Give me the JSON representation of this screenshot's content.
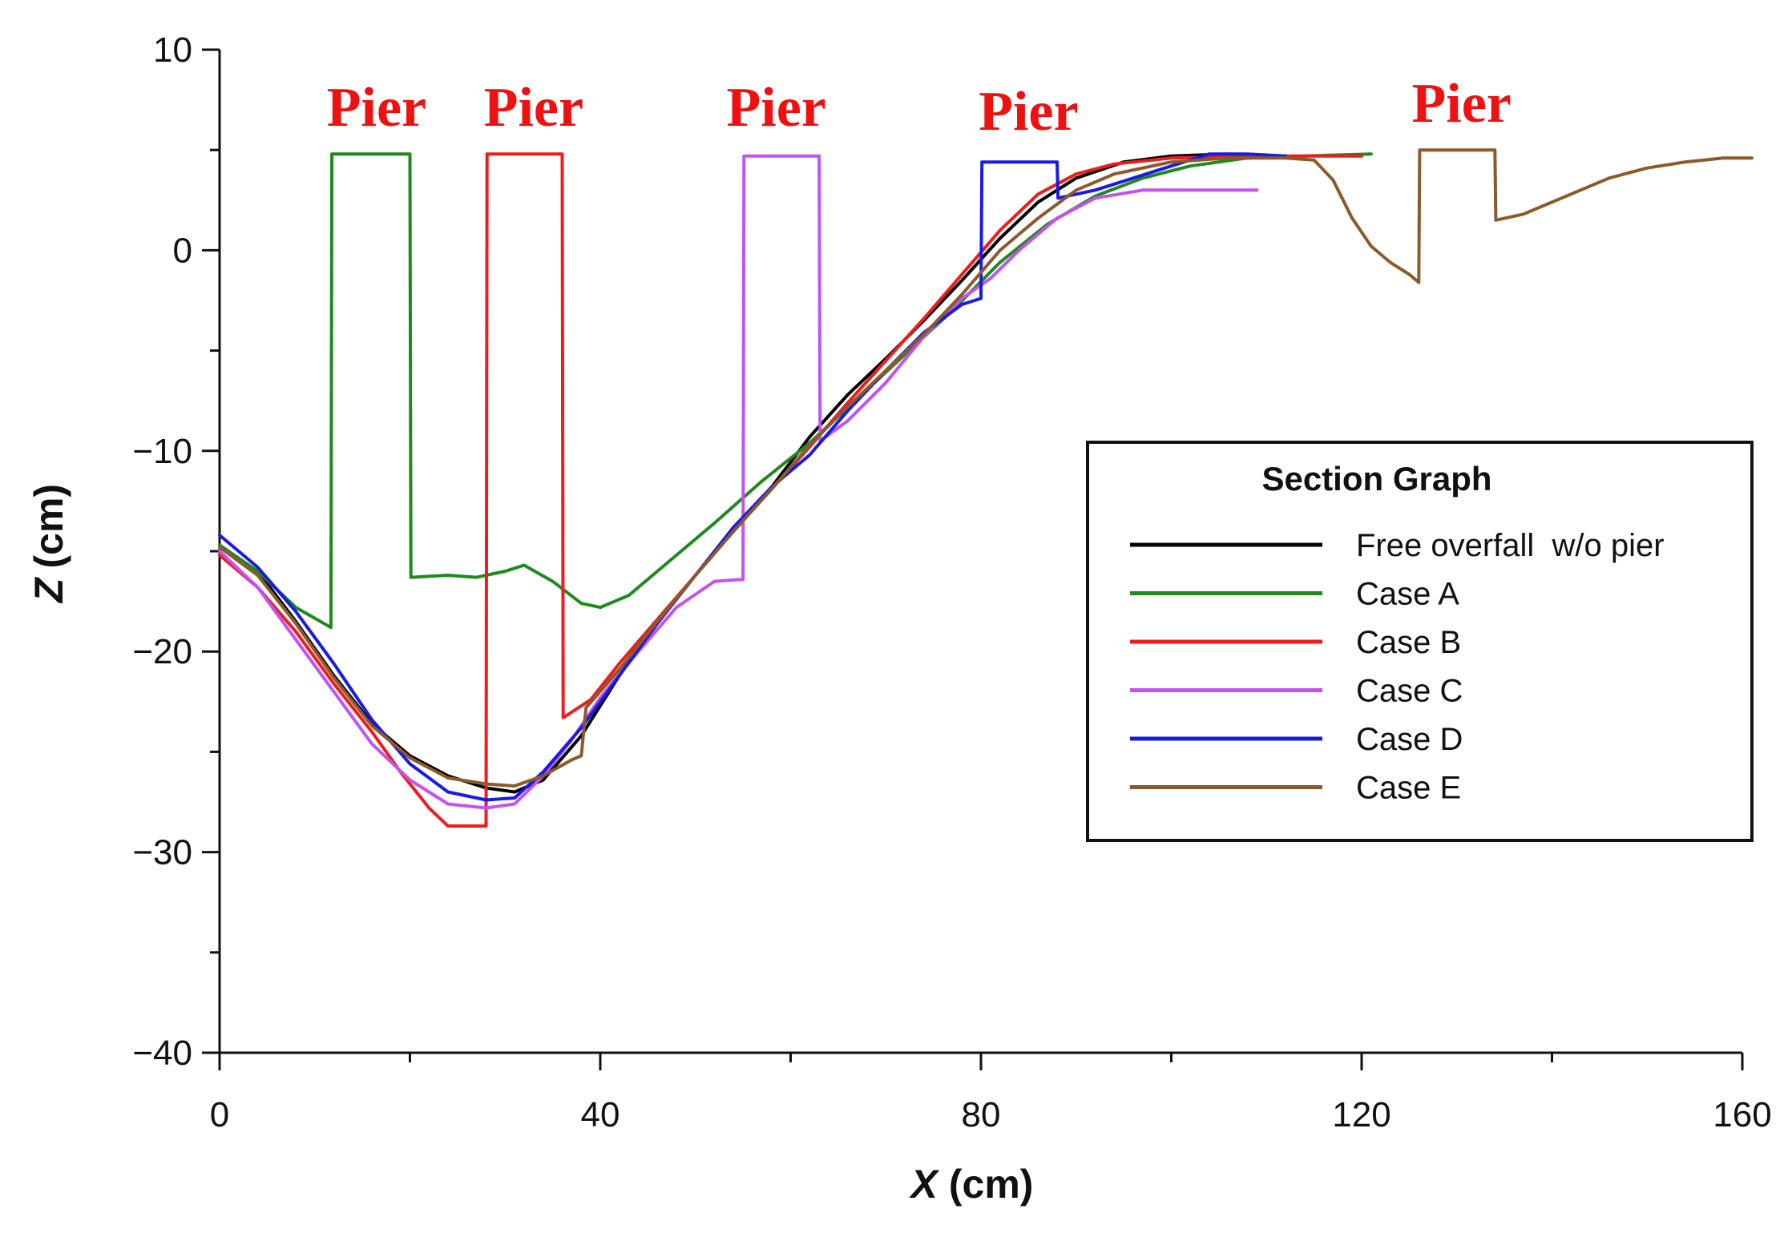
{
  "chart_data": {
    "type": "line",
    "title": "",
    "xlabel_symbol": "X",
    "xlabel_unit": "(cm)",
    "ylabel_symbol": "Z",
    "ylabel_unit": "(cm)",
    "xlim": [
      0,
      160
    ],
    "ylim": [
      -40,
      10
    ],
    "x_ticks": [
      0,
      40,
      80,
      120,
      160
    ],
    "x_tick_labels": [
      "0",
      "40",
      "80",
      "120",
      "160"
    ],
    "x_minor_ticks": [
      20,
      60,
      100,
      140
    ],
    "y_ticks": [
      -40,
      -30,
      -20,
      -10,
      0,
      10
    ],
    "y_tick_labels": [
      "−40",
      "−30",
      "−20",
      "−10",
      "0",
      "10"
    ],
    "y_minor_ticks": [
      -35,
      -25,
      -15,
      -5,
      5
    ],
    "grid": false,
    "legend": {
      "title": "Section Graph",
      "position": "right-middle"
    },
    "annotations": [
      {
        "text": "Pier",
        "x": 16.5,
        "y": 6.2
      },
      {
        "text": "Pier",
        "x": 33,
        "y": 6.2
      },
      {
        "text": "Pier",
        "x": 58.5,
        "y": 6.2
      },
      {
        "text": "Pier",
        "x": 85,
        "y": 6.0
      },
      {
        "text": "Pier",
        "x": 130.5,
        "y": 6.4
      }
    ],
    "series": [
      {
        "name": "Free overfall  w/o pier",
        "color": "#000000",
        "points": [
          [
            0,
            -14.7
          ],
          [
            4,
            -16
          ],
          [
            8,
            -18.5
          ],
          [
            12,
            -21.2
          ],
          [
            16,
            -23.6
          ],
          [
            20,
            -25.2
          ],
          [
            24,
            -26.2
          ],
          [
            28,
            -26.8
          ],
          [
            31,
            -27.0
          ],
          [
            34,
            -26.4
          ],
          [
            38,
            -24.2
          ],
          [
            42,
            -21.2
          ],
          [
            46,
            -18.5
          ],
          [
            50,
            -16.2
          ],
          [
            54,
            -14.0
          ],
          [
            58,
            -11.8
          ],
          [
            62,
            -9.3
          ],
          [
            66,
            -7.2
          ],
          [
            70,
            -5.4
          ],
          [
            74,
            -3.5
          ],
          [
            78,
            -1.5
          ],
          [
            82,
            0.6
          ],
          [
            86,
            2.4
          ],
          [
            90,
            3.6
          ],
          [
            95,
            4.4
          ],
          [
            100,
            4.7
          ],
          [
            106,
            4.8
          ],
          [
            110,
            4.7
          ]
        ]
      },
      {
        "name": "Case A",
        "color": "#1e8a1e",
        "points": [
          [
            0,
            -14.7
          ],
          [
            4,
            -16
          ],
          [
            8,
            -17.8
          ],
          [
            11.7,
            -18.8
          ],
          [
            11.8,
            4.8
          ],
          [
            20,
            4.8
          ],
          [
            20.1,
            -16.3
          ],
          [
            24,
            -16.2
          ],
          [
            27,
            -16.3
          ],
          [
            30,
            -16.0
          ],
          [
            32,
            -15.7
          ],
          [
            35,
            -16.5
          ],
          [
            38,
            -17.6
          ],
          [
            40,
            -17.8
          ],
          [
            43,
            -17.2
          ],
          [
            47,
            -15.6
          ],
          [
            52,
            -13.6
          ],
          [
            57,
            -11.5
          ],
          [
            62,
            -9.6
          ],
          [
            67,
            -7.4
          ],
          [
            72,
            -5.2
          ],
          [
            77,
            -3.0
          ],
          [
            82,
            -0.6
          ],
          [
            87,
            1.3
          ],
          [
            92,
            2.7
          ],
          [
            97,
            3.6
          ],
          [
            102,
            4.2
          ],
          [
            108,
            4.6
          ],
          [
            114,
            4.7
          ],
          [
            121,
            4.8
          ]
        ]
      },
      {
        "name": "Case B",
        "color": "#ee1c1c",
        "points": [
          [
            0,
            -15.2
          ],
          [
            4,
            -16.8
          ],
          [
            8,
            -19.0
          ],
          [
            12,
            -21.6
          ],
          [
            16,
            -24.0
          ],
          [
            19,
            -26.0
          ],
          [
            22,
            -27.8
          ],
          [
            24,
            -28.7
          ],
          [
            28,
            -28.7
          ],
          [
            28.1,
            4.8
          ],
          [
            36,
            4.8
          ],
          [
            36.1,
            -23.3
          ],
          [
            39,
            -22.4
          ],
          [
            42,
            -20.6
          ],
          [
            46,
            -18.4
          ],
          [
            50,
            -16.2
          ],
          [
            54,
            -14.0
          ],
          [
            58,
            -11.9
          ],
          [
            62,
            -9.8
          ],
          [
            66,
            -7.6
          ],
          [
            70,
            -5.5
          ],
          [
            74,
            -3.4
          ],
          [
            78,
            -1.2
          ],
          [
            82,
            1.0
          ],
          [
            86,
            2.8
          ],
          [
            90,
            3.8
          ],
          [
            94,
            4.3
          ],
          [
            100,
            4.6
          ],
          [
            108,
            4.7
          ],
          [
            114,
            4.7
          ],
          [
            120,
            4.7
          ]
        ]
      },
      {
        "name": "Case C",
        "color": "#c452f0",
        "points": [
          [
            0,
            -15.0
          ],
          [
            4,
            -16.8
          ],
          [
            8,
            -19.4
          ],
          [
            12,
            -22.0
          ],
          [
            16,
            -24.6
          ],
          [
            20,
            -26.4
          ],
          [
            24,
            -27.6
          ],
          [
            28,
            -27.8
          ],
          [
            31,
            -27.6
          ],
          [
            34,
            -26.2
          ],
          [
            37,
            -24.4
          ],
          [
            40,
            -22.3
          ],
          [
            44,
            -20.0
          ],
          [
            48,
            -17.8
          ],
          [
            52,
            -16.5
          ],
          [
            55,
            -16.4
          ],
          [
            55.1,
            4.7
          ],
          [
            63,
            4.7
          ],
          [
            63.1,
            -9.5
          ],
          [
            66,
            -8.5
          ],
          [
            70,
            -6.6
          ],
          [
            74,
            -4.3
          ],
          [
            78,
            -2.4
          ],
          [
            81,
            -1.4
          ],
          [
            84,
            0.0
          ],
          [
            88,
            1.6
          ],
          [
            92,
            2.6
          ],
          [
            97,
            3.0
          ],
          [
            103,
            3.0
          ],
          [
            109,
            3.0
          ]
        ]
      },
      {
        "name": "Case D",
        "color": "#1a1ae6",
        "points": [
          [
            0,
            -14.2
          ],
          [
            4,
            -15.8
          ],
          [
            8,
            -18.0
          ],
          [
            12,
            -20.6
          ],
          [
            16,
            -23.4
          ],
          [
            20,
            -25.6
          ],
          [
            24,
            -27.0
          ],
          [
            28,
            -27.4
          ],
          [
            31,
            -27.3
          ],
          [
            34,
            -26.0
          ],
          [
            38,
            -23.8
          ],
          [
            42,
            -21.2
          ],
          [
            46,
            -18.6
          ],
          [
            50,
            -16.2
          ],
          [
            54,
            -13.8
          ],
          [
            58,
            -11.8
          ],
          [
            62,
            -10.2
          ],
          [
            66,
            -8.0
          ],
          [
            70,
            -6.0
          ],
          [
            74,
            -4.1
          ],
          [
            78,
            -2.7
          ],
          [
            80,
            -2.4
          ],
          [
            80.1,
            4.4
          ],
          [
            88,
            4.4
          ],
          [
            88.1,
            2.6
          ],
          [
            92,
            3.0
          ],
          [
            96,
            3.6
          ],
          [
            100,
            4.2
          ],
          [
            104,
            4.8
          ],
          [
            108,
            4.8
          ],
          [
            112,
            4.7
          ]
        ]
      },
      {
        "name": "Case E",
        "color": "#8b5a2b",
        "points": [
          [
            0,
            -14.8
          ],
          [
            4,
            -16.2
          ],
          [
            8,
            -18.6
          ],
          [
            12,
            -21.3
          ],
          [
            16,
            -23.7
          ],
          [
            20,
            -25.3
          ],
          [
            24,
            -26.3
          ],
          [
            28,
            -26.6
          ],
          [
            31,
            -26.7
          ],
          [
            34,
            -26.2
          ],
          [
            37,
            -25.4
          ],
          [
            38,
            -25.2
          ],
          [
            38.5,
            -22.8
          ],
          [
            42,
            -20.9
          ],
          [
            46,
            -18.5
          ],
          [
            50,
            -16.2
          ],
          [
            54,
            -14.0
          ],
          [
            58,
            -11.9
          ],
          [
            62,
            -9.7
          ],
          [
            66,
            -7.8
          ],
          [
            70,
            -6.0
          ],
          [
            74,
            -4.2
          ],
          [
            78,
            -2.2
          ],
          [
            82,
            0.0
          ],
          [
            86,
            1.6
          ],
          [
            90,
            3.0
          ],
          [
            94,
            3.8
          ],
          [
            100,
            4.4
          ],
          [
            106,
            4.6
          ],
          [
            112,
            4.6
          ],
          [
            115,
            4.5
          ],
          [
            117,
            3.5
          ],
          [
            119,
            1.6
          ],
          [
            121,
            0.2
          ],
          [
            123,
            -0.6
          ],
          [
            125,
            -1.2
          ],
          [
            126,
            -1.6
          ],
          [
            126.1,
            5.0
          ],
          [
            134,
            5.0
          ],
          [
            134.1,
            1.5
          ],
          [
            137,
            1.8
          ],
          [
            140,
            2.4
          ],
          [
            143,
            3.0
          ],
          [
            146,
            3.6
          ],
          [
            150,
            4.1
          ],
          [
            154,
            4.4
          ],
          [
            158,
            4.6
          ],
          [
            161,
            4.6
          ]
        ]
      }
    ]
  }
}
